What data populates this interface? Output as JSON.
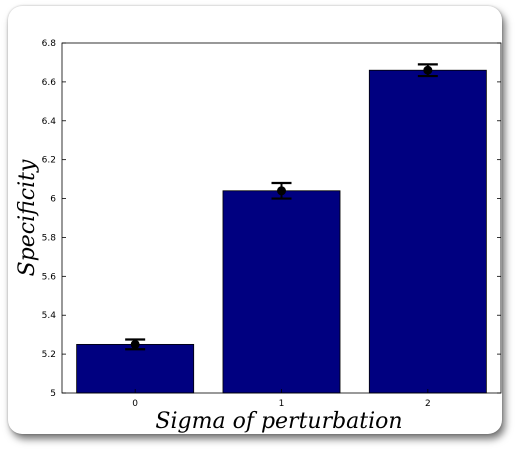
{
  "chart_data": {
    "type": "bar",
    "categories": [
      "0",
      "1",
      "2"
    ],
    "values": [
      5.25,
      6.04,
      6.66
    ],
    "errors": [
      0.025,
      0.04,
      0.03
    ],
    "xlabel": "Sigma of perturbation",
    "ylabel": "Specificity",
    "ylim": [
      5,
      6.8
    ],
    "yticks": [
      "5",
      "5.2",
      "5.4",
      "5.6",
      "5.8",
      "6",
      "6.2",
      "6.4",
      "6.6",
      "6.8"
    ],
    "bar_color": "#000080",
    "grid": false
  }
}
